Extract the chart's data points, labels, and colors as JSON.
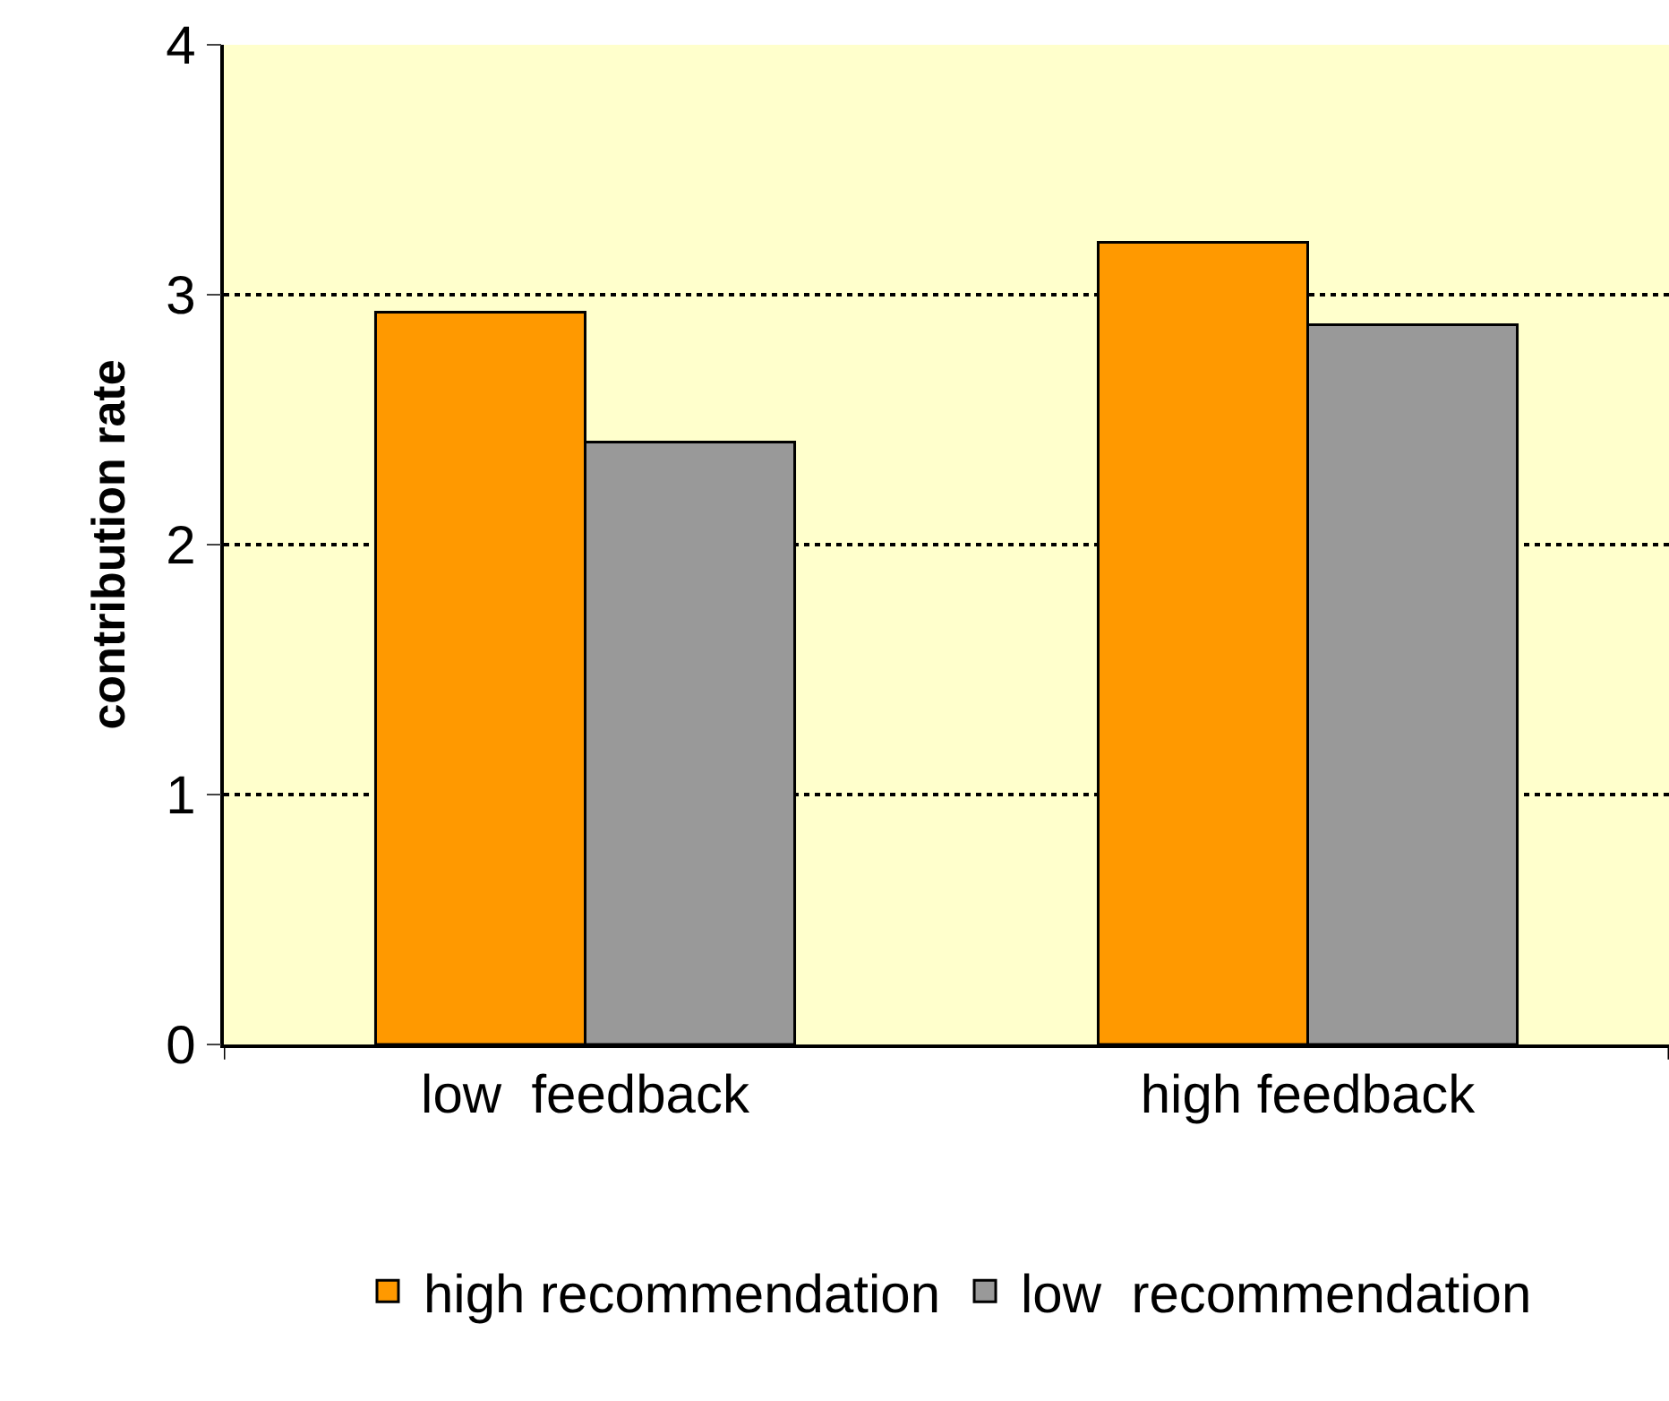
{
  "chart_data": {
    "type": "bar",
    "ylabel": "contribution rate",
    "categories": [
      "low  feedback",
      "high feedback"
    ],
    "series": [
      {
        "name": "high recommendation",
        "color": "#ff9900",
        "values": [
          2.93,
          3.21
        ]
      },
      {
        "name": "low  recommendation",
        "color": "#999999",
        "values": [
          2.41,
          2.88
        ]
      }
    ],
    "ylim": [
      0,
      4
    ],
    "yticks": [
      0,
      1,
      2,
      3,
      4
    ],
    "grid": "y",
    "legend": "bottom"
  }
}
